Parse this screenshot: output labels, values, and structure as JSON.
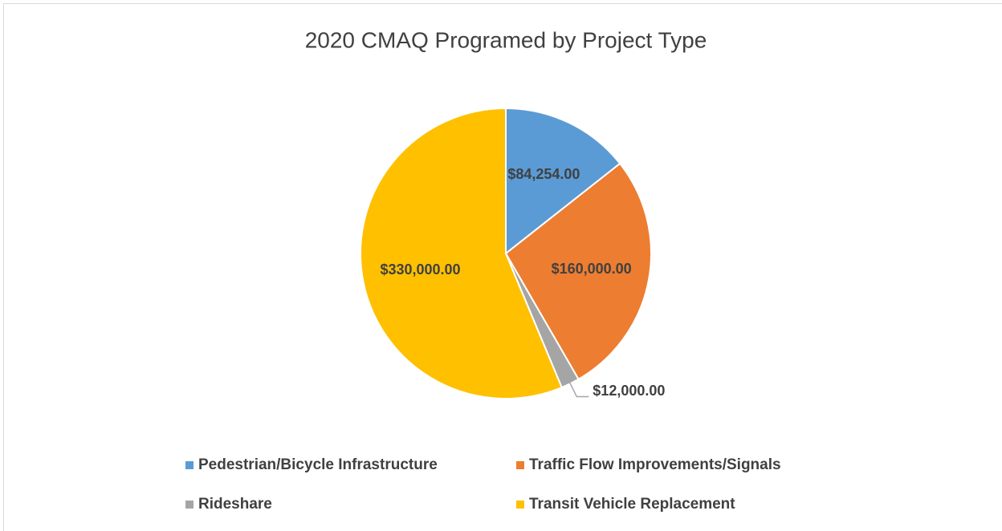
{
  "chart_data": {
    "type": "pie",
    "title": "2020 CMAQ Programed by Project Type",
    "categories": [
      "Pedestrian/Bicycle Infrastructure",
      "Traffic Flow Improvements/Signals",
      "Rideshare",
      "Transit Vehicle Replacement"
    ],
    "values": [
      84254,
      160000,
      12000,
      330000
    ],
    "value_labels": [
      "$84,254.00",
      "$160,000.00",
      "$12,000.00",
      "$330,000.00"
    ],
    "colors": [
      "#5b9bd5",
      "#ed7d31",
      "#a5a5a5",
      "#ffc000"
    ],
    "legend": "bottom"
  }
}
